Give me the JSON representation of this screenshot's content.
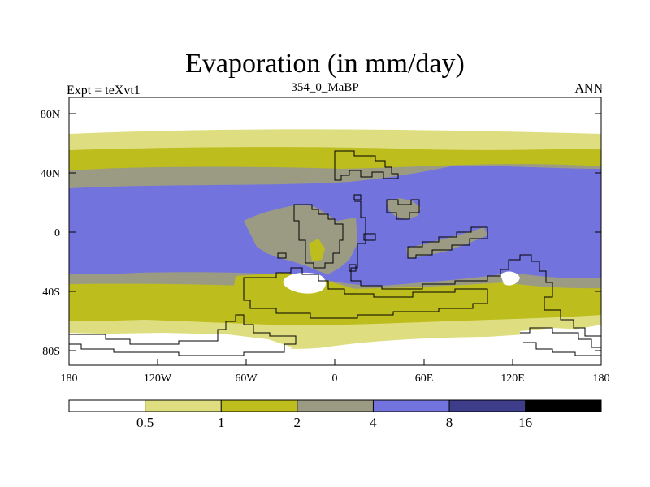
{
  "map": {
    "title": "Evaporation (in mm/day)",
    "expt_label": "Expt = teXvt1",
    "run_label": "354_0_MaBP",
    "season_label": "ANN",
    "y_ticks": [
      "80N",
      "40N",
      "0",
      "40S",
      "80S"
    ],
    "x_ticks": [
      "180",
      "120W",
      "60W",
      "0",
      "60E",
      "120E",
      "180"
    ]
  },
  "colorbar": {
    "levels": [
      "0.5",
      "1",
      "2",
      "4",
      "8",
      "16"
    ],
    "colors": [
      "#ffffff",
      "#dede80",
      "#bdbd1d",
      "#9b9b84",
      "#7373de",
      "#3d3d8a",
      "#000000"
    ]
  },
  "colors": {
    "white": "#ffffff",
    "pale_yellow": "#dede80",
    "olive": "#bdbd1d",
    "gray": "#9b9b84",
    "blue": "#7373de"
  }
}
